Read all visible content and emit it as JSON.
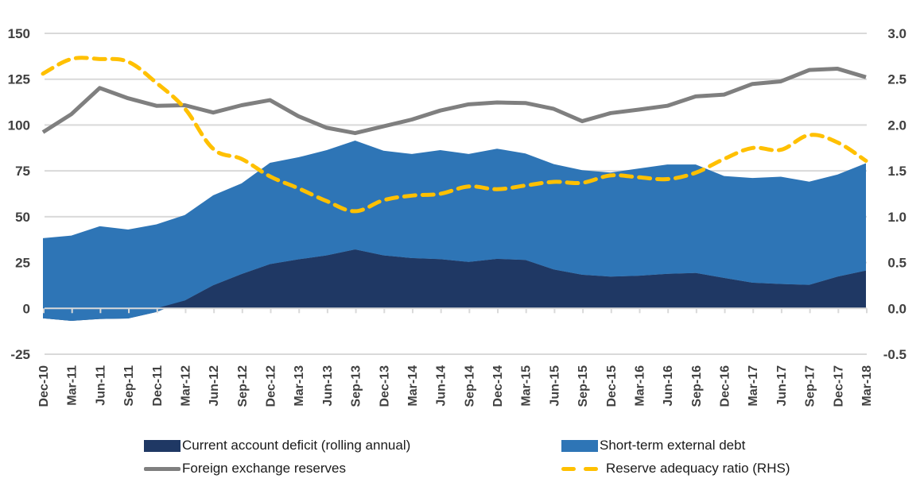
{
  "chart_data": {
    "type": "area",
    "title": "",
    "xlabel": "",
    "ylabel": "",
    "y2label": "",
    "categories": [
      "Dec-10",
      "Mar-11",
      "Jun-11",
      "Sep-11",
      "Dec-11",
      "Mar-12",
      "Jun-12",
      "Sep-12",
      "Dec-12",
      "Mar-13",
      "Jun-13",
      "Sep-13",
      "Dec-13",
      "Mar-14",
      "Jun-14",
      "Sep-14",
      "Dec-14",
      "Mar-15",
      "Jun-15",
      "Sep-15",
      "Dec-15",
      "Mar-16",
      "Jun-16",
      "Sep-16",
      "Dec-16",
      "Mar-17",
      "Jun-17",
      "Sep-17",
      "Dec-17",
      "Mar-18"
    ],
    "ylim": [
      -25,
      150
    ],
    "yticks": [
      -25,
      0,
      25,
      50,
      75,
      100,
      125,
      150
    ],
    "y2lim": [
      -0.5,
      3.0
    ],
    "y2ticks": [
      "-0.5",
      "0.0",
      "0.5",
      "1.0",
      "1.5",
      "2.0",
      "2.5",
      "3.0"
    ],
    "grid": true,
    "legend_position": "bottom",
    "series": [
      {
        "name": "Current account deficit (rolling annual)",
        "kind": "stacked-area",
        "axis": "left",
        "color": "#1f3864",
        "values": [
          -5.4,
          -6.8,
          -5.8,
          -5.5,
          -2.0,
          4.3,
          12.6,
          18.7,
          24.1,
          26.7,
          28.9,
          32.1,
          28.9,
          27.4,
          26.8,
          25.3,
          27.0,
          26.4,
          21.2,
          18.3,
          17.3,
          17.8,
          18.8,
          19.3,
          16.6,
          14.0,
          13.3,
          12.8,
          17.3,
          20.6
        ]
      },
      {
        "name": "Short-term external debt",
        "kind": "stacked-area",
        "axis": "left",
        "color": "#2e75b6",
        "values": [
          43.7,
          46.5,
          50.6,
          48.5,
          47.8,
          46.6,
          49.1,
          49.5,
          55.3,
          55.7,
          57.4,
          59.4,
          57.1,
          56.8,
          59.5,
          58.9,
          60.1,
          58.1,
          57.5,
          57.1,
          56.8,
          58.5,
          59.7,
          59.2,
          55.6,
          57.1,
          58.5,
          56.3,
          55.7,
          58.6
        ]
      },
      {
        "name": "Foreign exchange reserves",
        "kind": "line",
        "axis": "left",
        "color": "#7f7f7f",
        "values": [
          96.1,
          105.9,
          120.2,
          114.6,
          110.5,
          110.8,
          106.8,
          110.8,
          113.6,
          104.8,
          98.5,
          95.6,
          99.3,
          103.0,
          107.9,
          111.3,
          112.3,
          112.0,
          108.8,
          102.1,
          106.5,
          108.4,
          110.5,
          115.6,
          116.6,
          122.4,
          123.8,
          130.0,
          130.7,
          126.1
        ]
      },
      {
        "name": "Reserve adequacy ratio (RHS)",
        "kind": "dashed-line",
        "axis": "right",
        "color": "#ffc000",
        "values": [
          2.56,
          2.72,
          2.72,
          2.69,
          2.46,
          2.18,
          1.74,
          1.63,
          1.44,
          1.31,
          1.17,
          1.06,
          1.18,
          1.23,
          1.25,
          1.33,
          1.3,
          1.34,
          1.38,
          1.37,
          1.45,
          1.43,
          1.41,
          1.48,
          1.63,
          1.75,
          1.73,
          1.89,
          1.81,
          1.61
        ]
      }
    ]
  },
  "colors": {
    "grid": "#d9d9d9",
    "axis_text": "#404040"
  }
}
